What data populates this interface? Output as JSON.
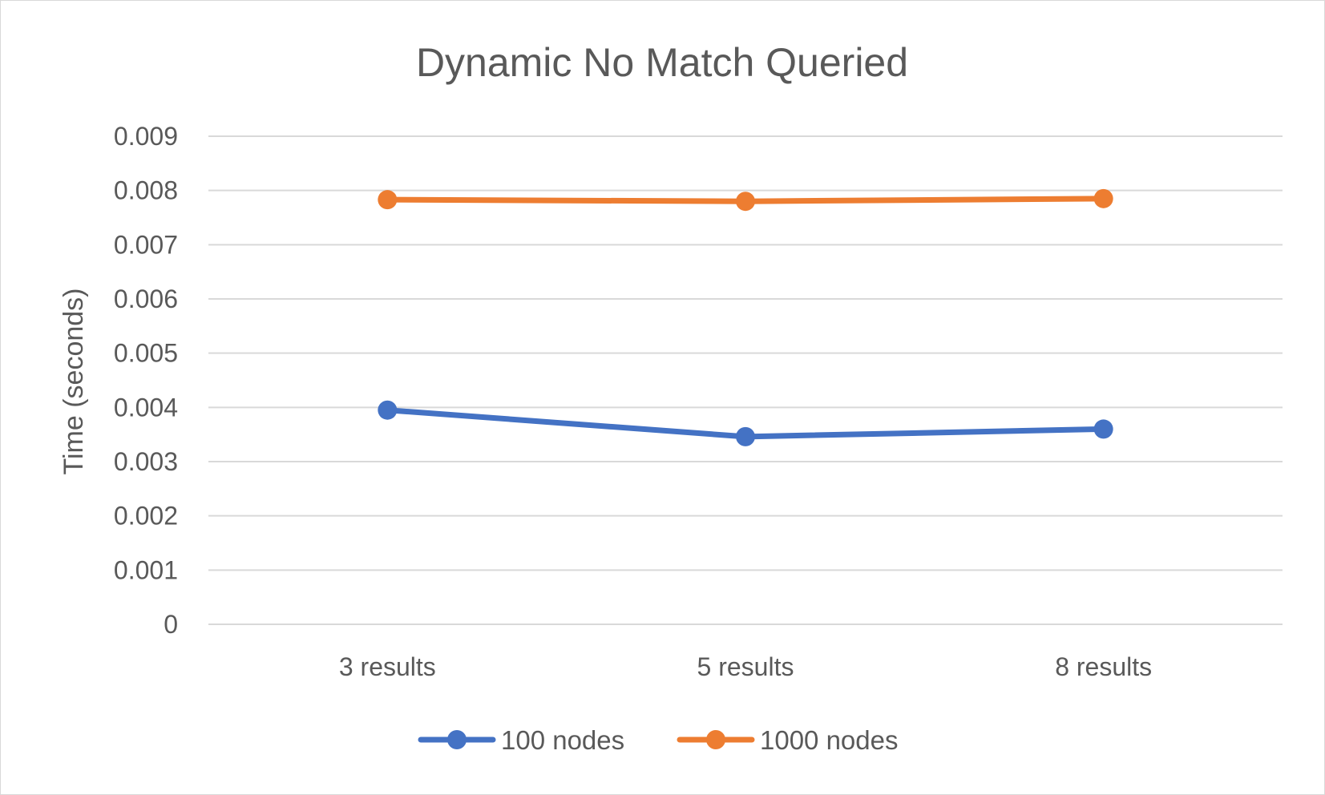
{
  "chart_data": {
    "type": "line",
    "title": "Dynamic No Match Queried",
    "xlabel": "",
    "ylabel": "Time (seconds)",
    "categories": [
      "3 results",
      "5 results",
      "8 results"
    ],
    "ylim": [
      0,
      0.009
    ],
    "yticks": [
      "0",
      "0.001",
      "0.002",
      "0.003",
      "0.004",
      "0.005",
      "0.006",
      "0.007",
      "0.008",
      "0.009"
    ],
    "grid": true,
    "legend_position": "bottom",
    "series": [
      {
        "name": "100 nodes",
        "color": "#4472c4",
        "values": [
          0.00395,
          0.00346,
          0.0036
        ]
      },
      {
        "name": "1000 nodes",
        "color": "#ed7d31",
        "values": [
          0.00783,
          0.0078,
          0.00785
        ]
      }
    ]
  }
}
